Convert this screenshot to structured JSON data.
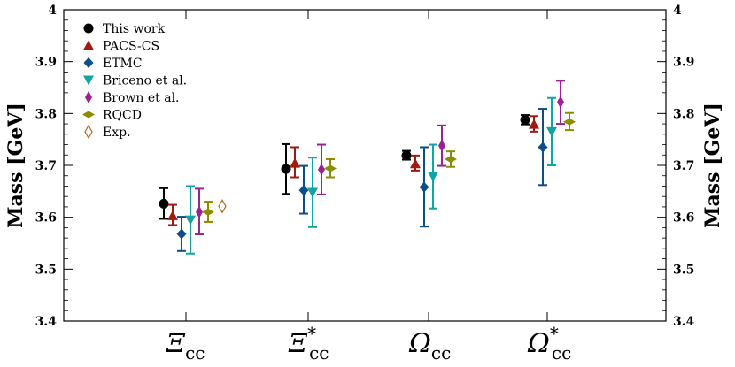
{
  "chart_data": {
    "type": "scatter",
    "ylabel": "Mass  [GeV]",
    "ylim": [
      3.4,
      4.0
    ],
    "yticks": [
      "3.4",
      "3.5",
      "3.6",
      "3.7",
      "3.8",
      "3.9",
      "4"
    ],
    "categories": [
      {
        "symbol": "Ξ",
        "sub": "cc",
        "sup": ""
      },
      {
        "symbol": "Ξ",
        "sub": "cc",
        "sup": "*"
      },
      {
        "symbol": "Ω",
        "sub": "cc",
        "sup": ""
      },
      {
        "symbol": "Ω",
        "sub": "cc",
        "sup": "*"
      }
    ],
    "legend_position": "top-left",
    "series": [
      {
        "name": "This work",
        "color": "#000000",
        "marker": "circle",
        "points": [
          {
            "cat": 0,
            "y": 3.626,
            "lo": 3.597,
            "hi": 3.656
          },
          {
            "cat": 1,
            "y": 3.693,
            "lo": 3.645,
            "hi": 3.741
          },
          {
            "cat": 2,
            "y": 3.719,
            "lo": 3.711,
            "hi": 3.728
          },
          {
            "cat": 3,
            "y": 3.788,
            "lo": 3.779,
            "hi": 3.797
          }
        ]
      },
      {
        "name": "PACS-CS",
        "color": "#A01A10",
        "marker": "triangle-up",
        "points": [
          {
            "cat": 0,
            "y": 3.603,
            "lo": 3.585,
            "hi": 3.624
          },
          {
            "cat": 1,
            "y": 3.704,
            "lo": 3.677,
            "hi": 3.735
          },
          {
            "cat": 2,
            "y": 3.703,
            "lo": 3.69,
            "hi": 3.719
          },
          {
            "cat": 3,
            "y": 3.779,
            "lo": 3.765,
            "hi": 3.795
          }
        ]
      },
      {
        "name": "ETMC",
        "color": "#0F4C8A",
        "marker": "diamond",
        "points": [
          {
            "cat": 0,
            "y": 3.568,
            "lo": 3.535,
            "hi": 3.601
          },
          {
            "cat": 1,
            "y": 3.652,
            "lo": 3.607,
            "hi": 3.699
          },
          {
            "cat": 2,
            "y": 3.658,
            "lo": 3.582,
            "hi": 3.735
          },
          {
            "cat": 3,
            "y": 3.735,
            "lo": 3.662,
            "hi": 3.809
          }
        ]
      },
      {
        "name": "Briceno et al.",
        "color": "#13A3A3",
        "marker": "triangle-down",
        "points": [
          {
            "cat": 0,
            "y": 3.595,
            "lo": 3.53,
            "hi": 3.66
          },
          {
            "cat": 1,
            "y": 3.648,
            "lo": 3.581,
            "hi": 3.715
          },
          {
            "cat": 2,
            "y": 3.679,
            "lo": 3.617,
            "hi": 3.74
          },
          {
            "cat": 3,
            "y": 3.765,
            "lo": 3.7,
            "hi": 3.83
          }
        ]
      },
      {
        "name": "Brown et al.",
        "color": "#9E2194",
        "marker": "thin-diamond",
        "points": [
          {
            "cat": 0,
            "y": 3.61,
            "lo": 3.567,
            "hi": 3.655
          },
          {
            "cat": 1,
            "y": 3.692,
            "lo": 3.644,
            "hi": 3.74
          },
          {
            "cat": 2,
            "y": 3.738,
            "lo": 3.699,
            "hi": 3.777
          },
          {
            "cat": 3,
            "y": 3.822,
            "lo": 3.78,
            "hi": 3.863
          }
        ]
      },
      {
        "name": "RQCD",
        "color": "#8C8C00",
        "marker": "thin-diamond-h",
        "points": [
          {
            "cat": 0,
            "y": 3.61,
            "lo": 3.591,
            "hi": 3.63
          },
          {
            "cat": 1,
            "y": 3.694,
            "lo": 3.677,
            "hi": 3.712
          },
          {
            "cat": 2,
            "y": 3.712,
            "lo": 3.697,
            "hi": 3.727
          },
          {
            "cat": 3,
            "y": 3.784,
            "lo": 3.768,
            "hi": 3.801
          }
        ]
      },
      {
        "name": "Exp.",
        "color": "#B5651D",
        "marker": "open-thin-diamond",
        "points": [
          {
            "cat": 0,
            "y": 3.621,
            "lo": null,
            "hi": null
          }
        ]
      }
    ]
  }
}
